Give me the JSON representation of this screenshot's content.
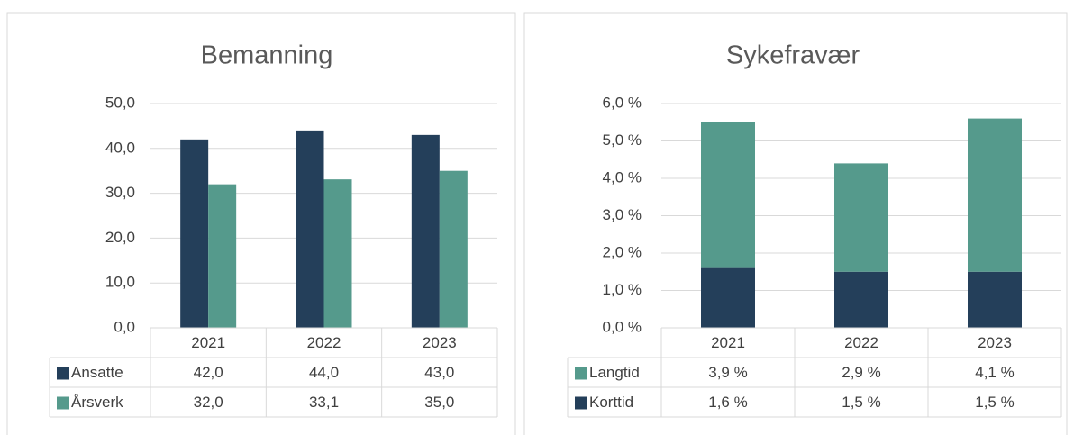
{
  "chart_data": [
    {
      "type": "bar",
      "title": "Bemanning",
      "categories": [
        "2021",
        "2022",
        "2023"
      ],
      "series": [
        {
          "name": "Ansatte",
          "color": "#243f5a",
          "values": [
            42,
            44,
            43
          ],
          "value_labels": [
            "42,0",
            "44,0",
            "43,0"
          ]
        },
        {
          "name": "Årsverk",
          "color": "#559a8c",
          "values": [
            32,
            33.1,
            35
          ],
          "value_labels": [
            "32,0",
            "33,1",
            "35,0"
          ]
        }
      ],
      "ylim": [
        0,
        50
      ],
      "yticks": [
        {
          "value": 0,
          "label": "0,0"
        },
        {
          "value": 10,
          "label": "10,0"
        },
        {
          "value": 20,
          "label": "20,0"
        },
        {
          "value": 30,
          "label": "30,0"
        },
        {
          "value": 40,
          "label": "40,0"
        },
        {
          "value": 50,
          "label": "50,0"
        }
      ],
      "grid": true
    },
    {
      "type": "stacked_bar",
      "title": "Sykefravær",
      "categories": [
        "2021",
        "2022",
        "2023"
      ],
      "series": [
        {
          "name": "Langtid",
          "color": "#559a8c",
          "values": [
            3.9,
            2.9,
            4.1
          ],
          "value_labels": [
            "3,9 %",
            "2,9 %",
            "4,1 %"
          ]
        },
        {
          "name": "Korttid",
          "color": "#243f5a",
          "values": [
            1.6,
            1.5,
            1.5
          ],
          "value_labels": [
            "1,6 %",
            "1,5 %",
            "1,5 %"
          ]
        }
      ],
      "ylim": [
        0,
        6
      ],
      "yticks": [
        {
          "value": 0,
          "label": "0,0 %"
        },
        {
          "value": 1,
          "label": "1,0 %"
        },
        {
          "value": 2,
          "label": "2,0 %"
        },
        {
          "value": 3,
          "label": "3,0 %"
        },
        {
          "value": 4,
          "label": "4,0 %"
        },
        {
          "value": 5,
          "label": "5,0 %"
        },
        {
          "value": 6,
          "label": "6,0 %"
        }
      ],
      "grid": true
    }
  ]
}
